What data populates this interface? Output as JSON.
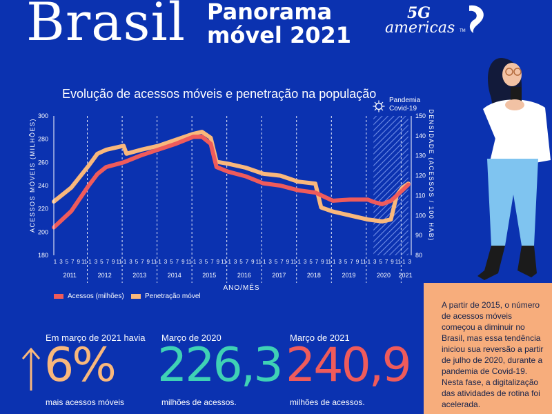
{
  "header": {
    "title": "Brasil",
    "subtitle_line1": "Panorama",
    "subtitle_line2": "móvel 2021",
    "logo_5g": "5G",
    "logo_americas": "americas",
    "logo_tm": "TM"
  },
  "colors": {
    "background": "#0b32b0",
    "acessos": "#ef5b5b",
    "penetracao": "#f9b87c",
    "stat_green": "#3fd1b5",
    "panel": "#f7ad7c"
  },
  "chart_data": {
    "type": "line",
    "title": "Evolução de acessos móveis e penetração na população",
    "xlabel": "ANO/MÊS",
    "ylabel_left": "ACESSOS MÓVEIS (MILHÕES)",
    "ylabel_right": "DENSIDADE (ACESSOS / 100 HAB)",
    "ylim_left": [
      180,
      300
    ],
    "yticks_left": [
      180,
      200,
      220,
      240,
      260,
      280,
      300
    ],
    "ylim_right": [
      80,
      150
    ],
    "yticks_right": [
      80,
      90,
      100,
      110,
      120,
      130,
      140,
      150
    ],
    "years": [
      "2011",
      "2012",
      "2013",
      "2014",
      "2015",
      "2016",
      "2017",
      "2018",
      "2019",
      "2020",
      "2021"
    ],
    "month_ticks": [
      "1",
      "3",
      "5",
      "7",
      "9",
      "11"
    ],
    "month_ticks_2021": [
      "1",
      "3"
    ],
    "annotation": {
      "label_line1": "Pandemia",
      "label_line2": "Covid-19",
      "start": "2020-03",
      "end": "2021-03"
    },
    "series": [
      {
        "name": "Acessos (milhões)",
        "x": [
          "2011-01",
          "2011-07",
          "2012-01",
          "2012-04",
          "2012-07",
          "2013-01",
          "2013-07",
          "2014-01",
          "2014-07",
          "2015-01",
          "2015-04",
          "2015-07",
          "2015-09",
          "2016-01",
          "2016-07",
          "2017-01",
          "2017-07",
          "2018-01",
          "2018-07",
          "2019-01",
          "2019-07",
          "2020-01",
          "2020-03",
          "2020-06",
          "2020-09",
          "2021-01",
          "2021-03"
        ],
        "values": [
          204,
          218,
          240,
          250,
          256,
          260,
          266,
          271,
          276,
          282,
          282,
          276,
          256,
          252,
          248,
          242,
          240,
          236,
          234,
          227,
          228,
          228,
          226,
          224,
          227,
          236,
          240.9
        ]
      },
      {
        "name": "Penetração móvel",
        "x": [
          "2011-01",
          "2011-07",
          "2012-01",
          "2012-04",
          "2012-07",
          "2013-01",
          "2013-02",
          "2013-07",
          "2014-01",
          "2014-07",
          "2015-01",
          "2015-04",
          "2015-07",
          "2015-09",
          "2016-01",
          "2016-07",
          "2017-01",
          "2017-07",
          "2018-01",
          "2018-07",
          "2018-09",
          "2019-01",
          "2019-07",
          "2020-01",
          "2020-06",
          "2020-09",
          "2020-11",
          "2021-01",
          "2021-03"
        ],
        "values": [
          107,
          114,
          125,
          131,
          133,
          135,
          131,
          133,
          135,
          138,
          141,
          142,
          139,
          127,
          126,
          124,
          121,
          120,
          117,
          116,
          104,
          102,
          100,
          98,
          97,
          98,
          110,
          114,
          116
        ]
      }
    ],
    "legend": [
      "Acessos (milhões)",
      "Penetração móvel"
    ],
    "legend_placement": "bottom-left"
  },
  "stats": [
    {
      "label": "Em março de 2021 havia",
      "value": "6%",
      "foot": "mais acessos móveis"
    },
    {
      "label": "Março de 2020",
      "value": "226,3",
      "foot": "milhões de acessos."
    },
    {
      "label": "Março de 2021",
      "value": "240,9",
      "foot": "milhões de acessos."
    }
  ],
  "side_text": "A partir de 2015, o número de acessos móveis começou a diminuir no Brasil, mas essa tendência iniciou sua reversão a partir de julho de 2020, durante a pandemia de Covid-19. Nesta fase, a digitalização das atividades de rotina foi acelerada."
}
